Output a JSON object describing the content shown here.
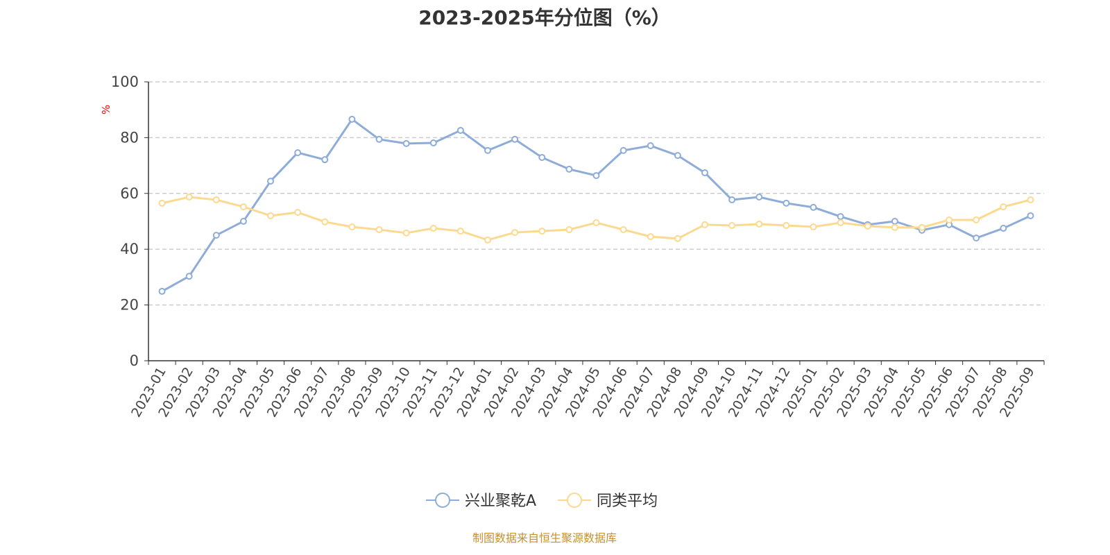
{
  "chart_data": {
    "type": "line",
    "title": "2023-2025年分位图（%）",
    "ylabel": "%",
    "xlabel": "",
    "ylim": [
      0,
      100
    ],
    "yticks": [
      0,
      20,
      40,
      60,
      80,
      100
    ],
    "grid": true,
    "legend_position": "bottom-center",
    "categories": [
      "2023-01",
      "2023-02",
      "2023-03",
      "2023-04",
      "2023-05",
      "2023-06",
      "2023-07",
      "2023-08",
      "2023-09",
      "2023-10",
      "2023-11",
      "2023-12",
      "2024-01",
      "2024-02",
      "2024-03",
      "2024-04",
      "2024-05",
      "2024-06",
      "2024-07",
      "2024-08",
      "2024-09",
      "2024-10",
      "2024-11",
      "2024-12",
      "2025-01",
      "2025-02",
      "2025-03",
      "2025-04",
      "2025-05",
      "2025-06",
      "2025-07",
      "2025-08",
      "2025-09"
    ],
    "series": [
      {
        "name": "兴业聚乾A",
        "color": "#8eacd9",
        "values": [
          24.9,
          30.3,
          45.0,
          50.0,
          64.4,
          74.6,
          72.1,
          86.6,
          79.4,
          77.9,
          78.1,
          82.6,
          75.4,
          79.4,
          72.9,
          68.7,
          66.4,
          75.4,
          77.1,
          73.6,
          67.4,
          57.7,
          58.7,
          56.5,
          55.0,
          51.7,
          48.8,
          50.0,
          46.8,
          48.8,
          44.0,
          47.5,
          52.0
        ]
      },
      {
        "name": "同类平均",
        "color": "#fcd98e",
        "values": [
          56.5,
          58.7,
          57.7,
          55.2,
          52.0,
          53.2,
          49.8,
          48.0,
          47.0,
          45.8,
          47.5,
          46.5,
          43.3,
          46.0,
          46.5,
          47.0,
          49.5,
          47.0,
          44.5,
          43.8,
          48.8,
          48.5,
          49.0,
          48.5,
          48.0,
          49.5,
          48.3,
          47.8,
          47.8,
          50.5,
          50.5,
          55.2,
          57.7
        ]
      }
    ]
  },
  "source": "制图数据来自恒生聚源数据库"
}
